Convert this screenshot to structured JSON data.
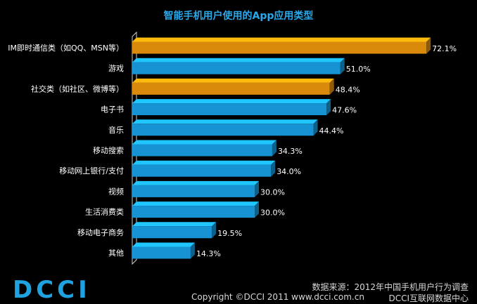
{
  "footer": {
    "logo_text": "DCCI",
    "source": "数据来源：2012年中国手机用户行为调查",
    "copyright": "Copyright ©DCCI 2011 www.dcci.com.cn",
    "org": "DCCI互联网数据中心"
  },
  "colors": {
    "background": "#000000",
    "bar_blue": "#1793d3",
    "bar_orange": "#d98a0a",
    "title": "#29a8ea",
    "label": "#ffffff",
    "axis": "#cccccc"
  },
  "chart_data": {
    "type": "bar",
    "orientation": "horizontal",
    "title": "智能手机用户使用的App应用类型",
    "xlabel": "",
    "ylabel": "",
    "xlim": [
      0,
      75
    ],
    "grid": false,
    "categories": [
      "IM即时通信类（如QQ、MSN等）",
      "游戏",
      "社交类（如社区、微博等）",
      "电子书",
      "音乐",
      "移动搜索",
      "移动网上银行/支付",
      "视频",
      "生活消费类",
      "移动电子商务",
      "其他"
    ],
    "values": [
      72.1,
      51.0,
      48.4,
      47.6,
      44.4,
      34.3,
      34.0,
      30.0,
      30.0,
      19.5,
      14.3
    ],
    "value_labels": [
      "72.1%",
      "51.0%",
      "48.4%",
      "47.6%",
      "44.4%",
      "34.3%",
      "34.0%",
      "30.0%",
      "30.0%",
      "19.5%",
      "14.3%"
    ],
    "highlight": [
      true,
      false,
      true,
      false,
      false,
      false,
      false,
      false,
      false,
      false,
      false
    ]
  }
}
